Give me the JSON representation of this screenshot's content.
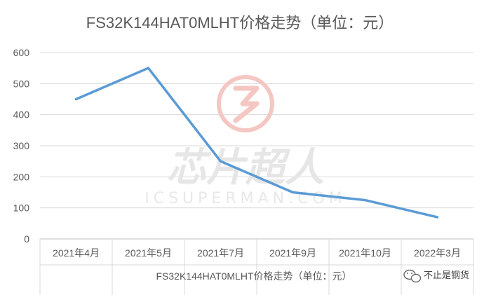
{
  "chart_data": {
    "type": "line",
    "title": "FS32K144HAT0MLHT价格走势（单位：元）",
    "xlabel": "FS32K144HAT0MLHT价格走势（单位：元）",
    "ylabel": "",
    "categories": [
      "2021年4月",
      "2021年5月",
      "2021年7月",
      "2021年9月",
      "2021年10月",
      "2022年3月"
    ],
    "series": [
      {
        "values": [
          450,
          550,
          250,
          150,
          125,
          70
        ]
      }
    ],
    "ylim": [
      0,
      600
    ],
    "yticks": [
      0,
      100,
      200,
      300,
      400,
      500,
      600
    ],
    "grid": true,
    "legend": "none",
    "line_color": "#5b9bd5"
  },
  "watermark": {
    "main": "芯片超人",
    "sub": "ICSUPERMAN.COM",
    "logo_color": "#f4c7c3"
  },
  "badge": {
    "icon": "wechat-icon",
    "text": "不止是钢货"
  }
}
